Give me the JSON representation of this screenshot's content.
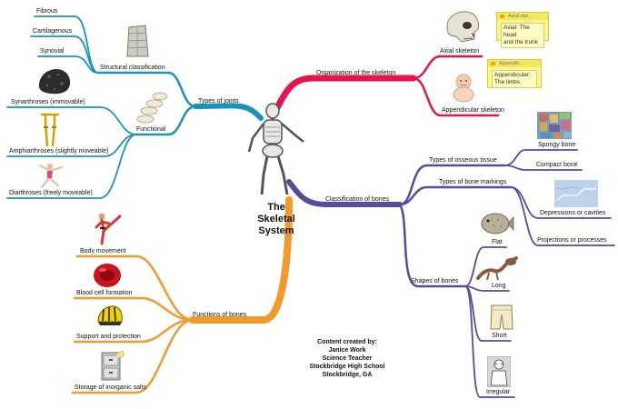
{
  "center": {
    "title_lines": [
      "The",
      "Skeletal",
      "System"
    ]
  },
  "branches": {
    "organization": {
      "label": "Organization of the skeleton",
      "color": "#e3154d",
      "children": {
        "axial": "Axial skeleton",
        "appendicular": "Appendicular skeleton"
      },
      "notes": [
        {
          "title": "Axial ske...",
          "text_lines": [
            "Axial: The head",
            "and the trunk"
          ]
        },
        {
          "title": "Appendic...",
          "text_lines": [
            "Appendicular:",
            "The limbs"
          ]
        }
      ]
    },
    "classification": {
      "label": "Classification of bones",
      "color": "#5a4a9c",
      "children": {
        "osseous": "Types of osseous tissue",
        "spongy": "Spongy bone",
        "compact": "Compact bone",
        "markings": "Types of bone markings",
        "depressions": "Depressions or cavities",
        "projections": "Projections or processes",
        "shapes": "Shapes of bones",
        "flat": "Flat",
        "long": "Long",
        "short": "Short",
        "irregular": "Irregular"
      }
    },
    "joints": {
      "label": "Types of joints",
      "color": "#1a93b8",
      "children": {
        "structural": "Structural classification",
        "fibrous": "Fibrous",
        "cartilagenous": "Cartilagenous",
        "synovial": "Synovial",
        "functional": "Functional",
        "synarthroses": "Synarthroses (immovable)",
        "amphiarthroses": "Amphiarthroses (slightly moveable)",
        "diarthroses": "Diarthroses (freely moveable)"
      }
    },
    "functions": {
      "label": "Functions of bones",
      "color": "#f39a2e",
      "children": {
        "movement": "Body movement",
        "blood": "Blood cell formation",
        "support": "Support and protection",
        "storage": "Storage of inorganic salts"
      }
    }
  },
  "credits": {
    "lines": [
      "Content created by:",
      "Janice Work",
      "Science Teacher",
      "Stockbridge High School",
      "Stockbridge, GA"
    ]
  },
  "icons": [
    "skeleton-icon",
    "skull-icon",
    "baby-icon",
    "spongy-bone-icon",
    "depression-icon",
    "flat-fish-icon",
    "long-bone-icon",
    "short-bone-icon",
    "irregular-bone-icon",
    "stone-pillar-icon",
    "rock-icon",
    "crutches-icon",
    "gymnast-icon",
    "vertebrae-icon",
    "karate-icon",
    "blood-cell-icon",
    "helmet-icon",
    "file-cabinet-icon"
  ]
}
